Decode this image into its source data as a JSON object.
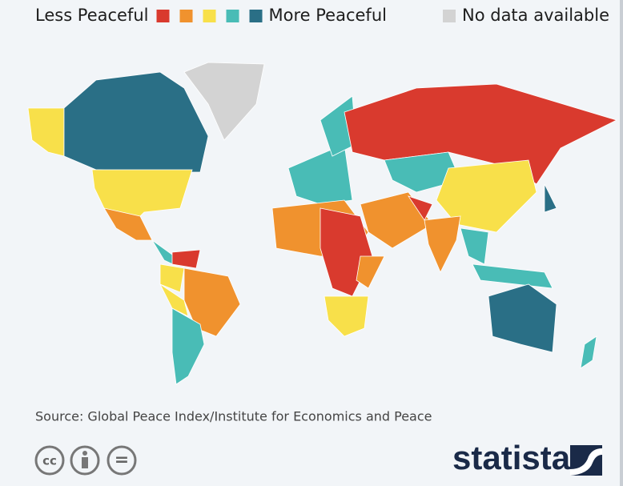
{
  "legend": {
    "low_label": "Less Peaceful",
    "high_label": "More Peaceful",
    "scale_colors": [
      "#d93a2e",
      "#f0922e",
      "#f8e04a",
      "#49bcb6",
      "#2a6f86"
    ],
    "no_data_label": "No data available",
    "no_data_color": "#d3d3d3"
  },
  "source": "Source: Global Peace Index/Institute for Economics and Peace",
  "license": {
    "cc": "cc",
    "equals": "="
  },
  "brand": "statista"
}
